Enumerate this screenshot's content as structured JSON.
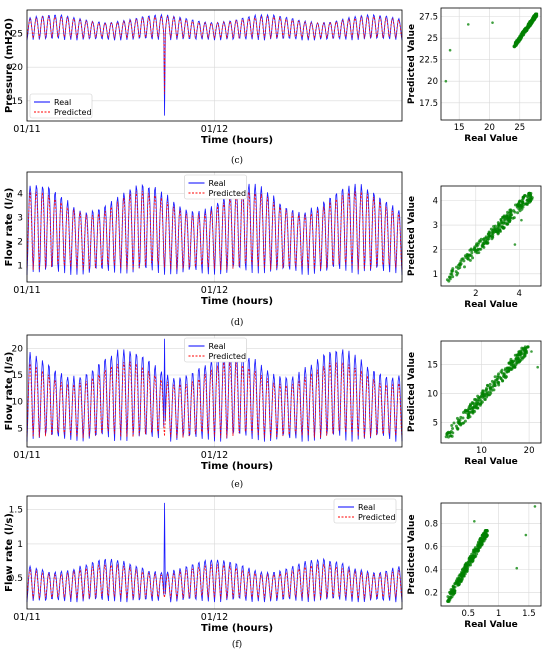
{
  "chart_data": [
    {
      "panel": "c",
      "type": "line",
      "caption": "(c)",
      "xlabel": "Time (hours)",
      "ylabel": "Pressure (mH20)",
      "xticklabels": [
        "01/11",
        "01/12"
      ],
      "yticks": [
        15,
        20,
        25
      ],
      "ylim": [
        12,
        28.5
      ],
      "grid": true,
      "legend_position": "lower-left",
      "series": [
        {
          "name": "Real",
          "color": "#0000ff",
          "style": "solid",
          "cycles": 60,
          "min": 24.0,
          "max": 27.8,
          "spike": {
            "cycle": 22,
            "value": 12.8,
            "direction": "down"
          }
        },
        {
          "name": "Predicted",
          "color": "#ff0000",
          "style": "dashed",
          "cycles": 60,
          "min": 24.3,
          "max": 27.5,
          "spike": {
            "cycle": 22,
            "value": 16.0,
            "direction": "down"
          }
        }
      ],
      "scatter": {
        "type": "scatter",
        "xlabel": "Real Value",
        "ylabel": "Predicted Value",
        "xticks": [
          15,
          20,
          25
        ],
        "yticks": [
          17.5,
          20.0,
          22.5,
          25.0,
          27.5
        ],
        "xlim": [
          12,
          28.5
        ],
        "ylim": [
          15.5,
          28.5
        ],
        "color": "#008000",
        "cluster": {
          "x": [
            24.0,
            27.8
          ],
          "y": [
            24.0,
            27.8
          ]
        },
        "outliers": [
          [
            12.8,
            20.0
          ],
          [
            13.5,
            23.6
          ],
          [
            16.5,
            26.6
          ],
          [
            20.5,
            26.8
          ]
        ]
      }
    },
    {
      "panel": "d",
      "type": "line",
      "caption": "(d)",
      "xlabel": "Time (hours)",
      "ylabel": "Flow rate (l/s)",
      "xticklabels": [
        "01/11",
        "01/12"
      ],
      "yticks": [
        1,
        2,
        3,
        4
      ],
      "ylim": [
        0.3,
        4.9
      ],
      "grid": true,
      "legend_position": "upper-center",
      "series": [
        {
          "name": "Real",
          "color": "#0000ff",
          "style": "solid",
          "cycles": 60,
          "min": 0.6,
          "max": 4.4
        },
        {
          "name": "Predicted",
          "color": "#ff0000",
          "style": "dashed",
          "cycles": 60,
          "min": 0.8,
          "max": 4.1
        }
      ],
      "scatter": {
        "type": "scatter",
        "xlabel": "Real Value",
        "ylabel": "Predicted Value",
        "xticks": [
          2,
          4
        ],
        "yticks": [
          1,
          2,
          3,
          4
        ],
        "xlim": [
          0.4,
          5.0
        ],
        "ylim": [
          0.5,
          4.6
        ],
        "color": "#008000",
        "cluster": {
          "x": [
            0.6,
            4.6
          ],
          "y": [
            0.7,
            4.3
          ]
        },
        "outliers": [
          [
            3.8,
            2.2
          ],
          [
            4.1,
            3.2
          ]
        ]
      }
    },
    {
      "panel": "e",
      "type": "line",
      "caption": "(e)",
      "xlabel": "Time (hours)",
      "ylabel": "Flow rate (l/s)",
      "xticklabels": [
        "01/11",
        "01/12"
      ],
      "yticks": [
        5,
        10,
        15,
        20
      ],
      "ylim": [
        1.5,
        22.5
      ],
      "grid": true,
      "legend_position": "upper-center",
      "series": [
        {
          "name": "Real",
          "color": "#0000ff",
          "style": "solid",
          "cycles": 60,
          "min": 2.5,
          "max": 19.8,
          "spike": {
            "cycle": 22,
            "value": 21.8,
            "direction": "up"
          }
        },
        {
          "name": "Predicted",
          "color": "#ff0000",
          "style": "dashed",
          "cycles": 60,
          "min": 3.2,
          "max": 17.5
        }
      ],
      "scatter": {
        "type": "scatter",
        "xlabel": "Real Value",
        "ylabel": "Predicted Value",
        "xticks": [
          10,
          20
        ],
        "yticks": [
          5,
          10,
          15
        ],
        "xlim": [
          1.5,
          22.5
        ],
        "ylim": [
          1.5,
          19.0
        ],
        "color": "#008000",
        "cluster": {
          "x": [
            2.5,
            19.8
          ],
          "y": [
            2.5,
            18.0
          ]
        },
        "outliers": [
          [
            21.8,
            14.5
          ],
          [
            20.5,
            17.2
          ]
        ]
      }
    },
    {
      "panel": "f",
      "type": "line",
      "caption": "(f)",
      "xlabel": "Time (hours)",
      "ylabel": "Flow rate (l/s)",
      "xticklabels": [
        "01/11",
        "01/12"
      ],
      "yticks": [
        0.5,
        1.0,
        1.5
      ],
      "ylim": [
        0.05,
        1.7
      ],
      "grid": true,
      "legend_position": "upper-right",
      "series": [
        {
          "name": "Real",
          "color": "#0000ff",
          "style": "solid",
          "cycles": 60,
          "min": 0.15,
          "max": 0.78,
          "spike": {
            "cycle": 22,
            "value": 1.6,
            "direction": "up"
          }
        },
        {
          "name": "Predicted",
          "color": "#ff0000",
          "style": "dashed",
          "cycles": 60,
          "min": 0.2,
          "max": 0.7
        }
      ],
      "scatter": {
        "type": "scatter",
        "xlabel": "Real Value",
        "ylabel": "Predicted Value",
        "xticks": [
          0.5,
          1.0,
          1.5
        ],
        "yticks": [
          0.2,
          0.4,
          0.6,
          0.8
        ],
        "xlim": [
          0.05,
          1.7
        ],
        "ylim": [
          0.08,
          0.98
        ],
        "color": "#008000",
        "cluster": {
          "x": [
            0.15,
            0.82
          ],
          "y": [
            0.12,
            0.74
          ]
        },
        "outliers": [
          [
            0.6,
            0.82
          ],
          [
            1.3,
            0.41
          ],
          [
            1.45,
            0.7
          ],
          [
            1.6,
            0.95
          ]
        ]
      }
    }
  ]
}
